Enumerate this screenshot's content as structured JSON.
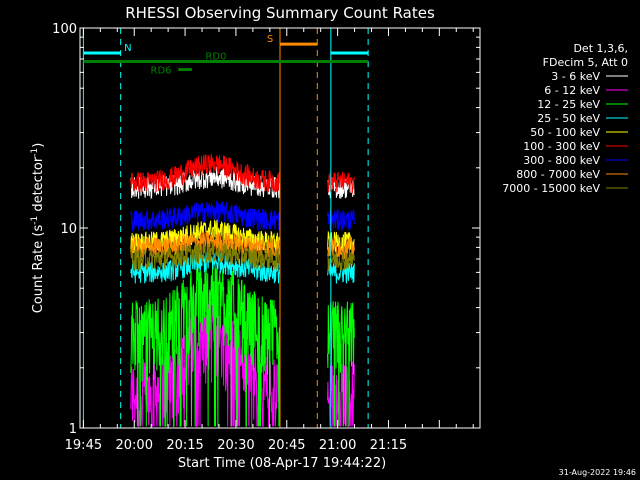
{
  "chart_data": {
    "type": "line",
    "title": "RHESSI Observing Summary Count Rates",
    "xlabel": "Start Time (08-Apr-17 19:44:22)",
    "ylabel_main": "Count Rate (s",
    "ylabel_sup1": "-1",
    "ylabel_mid": " detector",
    "ylabel_sup2": "-1",
    "ylabel_end": ")",
    "y_scale": "log",
    "ylim": [
      1,
      100
    ],
    "y_ticks": [
      {
        "v": 1,
        "label": "1"
      },
      {
        "v": 10,
        "label": "10"
      },
      {
        "v": 100,
        "label": "100"
      }
    ],
    "xlim_min": [
      -1,
      117
    ],
    "x_ticks": [
      {
        "m": 0,
        "label": "19:45"
      },
      {
        "m": 15,
        "label": "20:00"
      },
      {
        "m": 30,
        "label": "20:15"
      },
      {
        "m": 45,
        "label": "20:30"
      },
      {
        "m": 60,
        "label": "20:45"
      },
      {
        "m": 75,
        "label": "21:00"
      },
      {
        "m": 90,
        "label": "21:15"
      }
    ],
    "legend_header": [
      "Det 1,3,6,",
      "FDecim 5, Att 0"
    ],
    "series": [
      {
        "name": "3 - 6 keV",
        "color": "#ffffff",
        "base": 16,
        "peak": 18
      },
      {
        "name": "6 - 12 keV",
        "color": "#ff00ff",
        "base": 1.5,
        "peak": 3
      },
      {
        "name": "12 - 25 keV",
        "color": "#00ff00",
        "base": 3,
        "peak": 4.8
      },
      {
        "name": "25 - 50 keV",
        "color": "#00ffff",
        "base": 6,
        "peak": 6.8
      },
      {
        "name": "50 - 100 keV",
        "color": "#ffff00",
        "base": 8.5,
        "peak": 9.8
      },
      {
        "name": "100 - 300 keV",
        "color": "#ff0000",
        "base": 17,
        "peak": 21
      },
      {
        "name": "300 - 800 keV",
        "color": "#0000ff",
        "base": 11,
        "peak": 12.2
      },
      {
        "name": "800 - 7000 keV",
        "color": "#ff8c00",
        "base": 8,
        "peak": 8.6
      },
      {
        "name": "7000 - 15000 keV",
        "color": "#808000",
        "base": 7,
        "peak": 7.6
      }
    ],
    "data_intervals_min": [
      [
        14,
        58
      ],
      [
        72,
        80
      ]
    ],
    "vlines": [
      {
        "m": 0,
        "color": "#00ffff",
        "style": "solid"
      },
      {
        "m": 11,
        "color": "#00ffff",
        "style": "dashed"
      },
      {
        "m": 58,
        "color": "#ff8c00",
        "style": "solid"
      },
      {
        "m": 69,
        "color": "#ff8c00",
        "style": "dashed"
      },
      {
        "m": 73,
        "color": "#00ffff",
        "style": "solid"
      },
      {
        "m": 84,
        "color": "#00ffff",
        "style": "dashed"
      }
    ],
    "flags": [
      {
        "label": "N",
        "color": "#00ffff",
        "y": 75,
        "segments": [
          [
            0,
            11
          ],
          [
            73,
            84
          ]
        ],
        "label_m": 12,
        "label_side": "right"
      },
      {
        "label": "S",
        "color": "#ff8c00",
        "y": 83,
        "segments": [
          [
            58,
            69
          ]
        ],
        "label_m": 56,
        "label_side": "left"
      },
      {
        "label": "RD0",
        "color": "#008000",
        "y": 68,
        "segments": [
          [
            0,
            84
          ]
        ],
        "label_m": 36,
        "label_side": "right",
        "thick": true
      },
      {
        "label": "RD6",
        "color": "#008000",
        "y": 62,
        "segments": [
          [
            28,
            32
          ]
        ],
        "label_m": 26,
        "label_side": "left",
        "thick": true
      }
    ]
  },
  "footer": {
    "timestamp": "31-Aug-2022 19:46"
  }
}
